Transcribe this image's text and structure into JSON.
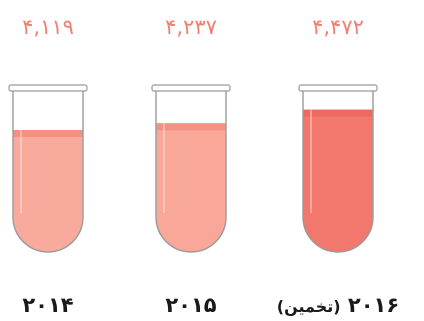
{
  "chart_data": {
    "type": "bar",
    "title": "",
    "xlabel": "",
    "ylabel": "",
    "ylim": [
      0,
      4800
    ],
    "categories": [
      "۲۰۱۴",
      "۲۰۱۵",
      "۲۰۱۶"
    ],
    "category_notes": [
      "",
      "",
      "(تخمین)"
    ],
    "values": [
      4119,
      4237,
      4472
    ],
    "value_labels": [
      "۴,۱۱۹",
      "۴,۲۳۷",
      "۴,۴۷۲"
    ],
    "colors": {
      "label": "#f08070",
      "tube_outline": "#9a9a9a",
      "fills": [
        "#f8aa9c",
        "#f8a799",
        "#f2776c"
      ],
      "surfaces": [
        "#f49183",
        "#f49183",
        "#ee6a60"
      ]
    }
  }
}
